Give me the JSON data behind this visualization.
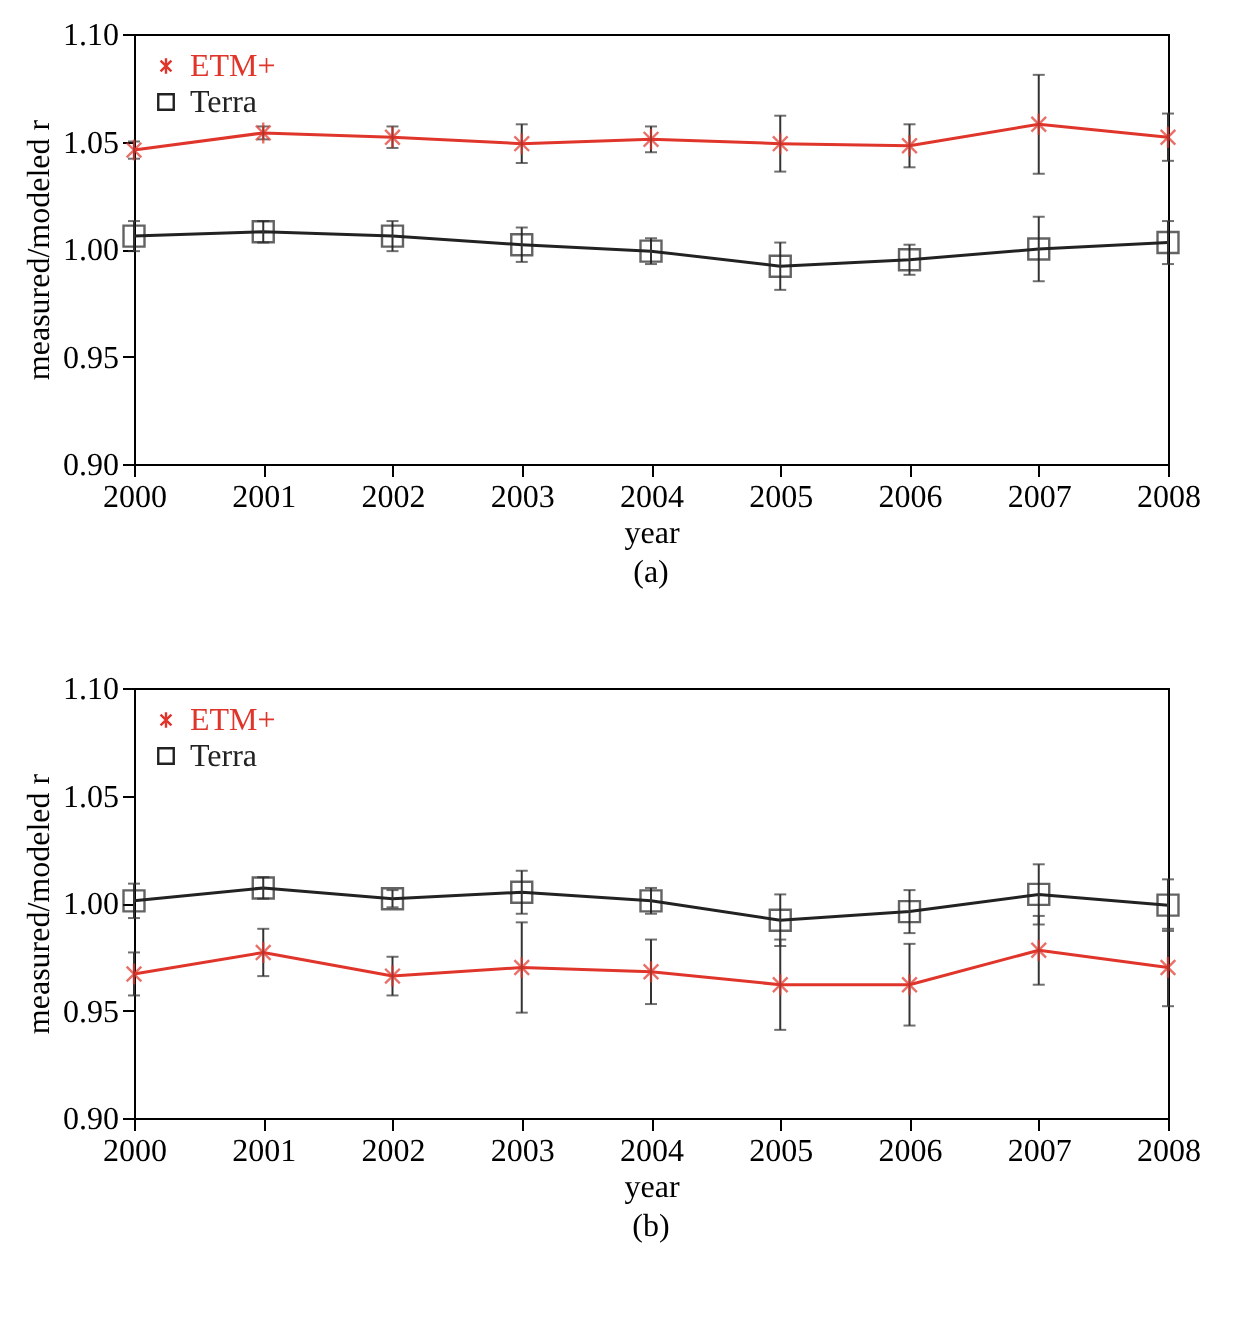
{
  "chart_data": [
    {
      "type": "line",
      "xlabel": "year",
      "ylabel": "measured/modeled r",
      "annotations": [
        "(a)"
      ],
      "x": [
        2000,
        2001,
        2002,
        2003,
        2004,
        2005,
        2006,
        2007,
        2008
      ],
      "xlim": [
        2000,
        2008
      ],
      "xticks": [
        2000,
        2001,
        2002,
        2003,
        2004,
        2005,
        2006,
        2007,
        2008
      ],
      "ylim": [
        0.9,
        1.1
      ],
      "yticks": [
        {
          "value": 0.9,
          "label": "0.90"
        },
        {
          "value": 0.95,
          "label": "0.95"
        },
        {
          "value": 1.0,
          "label": "1.00"
        },
        {
          "value": 1.05,
          "label": "1.05"
        },
        {
          "value": 1.1,
          "label": "1.10"
        }
      ],
      "grid": false,
      "legend": "top left",
      "line_style": "solid",
      "series": [
        {
          "name": "ETM+",
          "color": "#e0352b",
          "marker": "cross",
          "values": [
            1.046,
            1.054,
            1.052,
            1.049,
            1.051,
            1.049,
            1.048,
            1.058,
            1.052
          ],
          "errors": [
            0.004,
            0.003,
            0.005,
            0.009,
            0.006,
            0.013,
            0.01,
            0.023,
            0.011
          ]
        },
        {
          "name": "Terra",
          "color": "#222222",
          "marker": "square",
          "values": [
            1.006,
            1.008,
            1.006,
            1.002,
            0.999,
            0.992,
            0.995,
            1.0,
            1.003
          ],
          "errors": [
            0.007,
            0.005,
            0.007,
            0.008,
            0.006,
            0.011,
            0.007,
            0.015,
            0.01
          ]
        }
      ]
    },
    {
      "type": "line",
      "xlabel": "year",
      "ylabel": "measured/modeled r",
      "annotations": [
        "(b)"
      ],
      "x": [
        2000,
        2001,
        2002,
        2003,
        2004,
        2005,
        2006,
        2007,
        2008
      ],
      "xlim": [
        2000,
        2008
      ],
      "xticks": [
        2000,
        2001,
        2002,
        2003,
        2004,
        2005,
        2006,
        2007,
        2008
      ],
      "ylim": [
        0.9,
        1.1
      ],
      "yticks": [
        {
          "value": 0.9,
          "label": "0.90"
        },
        {
          "value": 0.95,
          "label": "0.95"
        },
        {
          "value": 1.0,
          "label": "1.00"
        },
        {
          "value": 1.05,
          "label": "1.05"
        },
        {
          "value": 1.1,
          "label": "1.10"
        }
      ],
      "grid": false,
      "legend": "top left",
      "line_style": "solid",
      "series": [
        {
          "name": "ETM+",
          "color": "#e0352b",
          "marker": "cross",
          "values": [
            0.967,
            0.977,
            0.966,
            0.97,
            0.968,
            0.962,
            0.962,
            0.978,
            0.97
          ],
          "errors": [
            0.01,
            0.011,
            0.009,
            0.021,
            0.015,
            0.021,
            0.019,
            0.016,
            0.018
          ]
        },
        {
          "name": "Terra",
          "color": "#222222",
          "marker": "square",
          "values": [
            1.001,
            1.007,
            1.002,
            1.005,
            1.001,
            0.992,
            0.996,
            1.004,
            0.999
          ],
          "errors": [
            0.008,
            0.005,
            0.004,
            0.01,
            0.006,
            0.012,
            0.01,
            0.014,
            0.012
          ]
        }
      ]
    }
  ]
}
